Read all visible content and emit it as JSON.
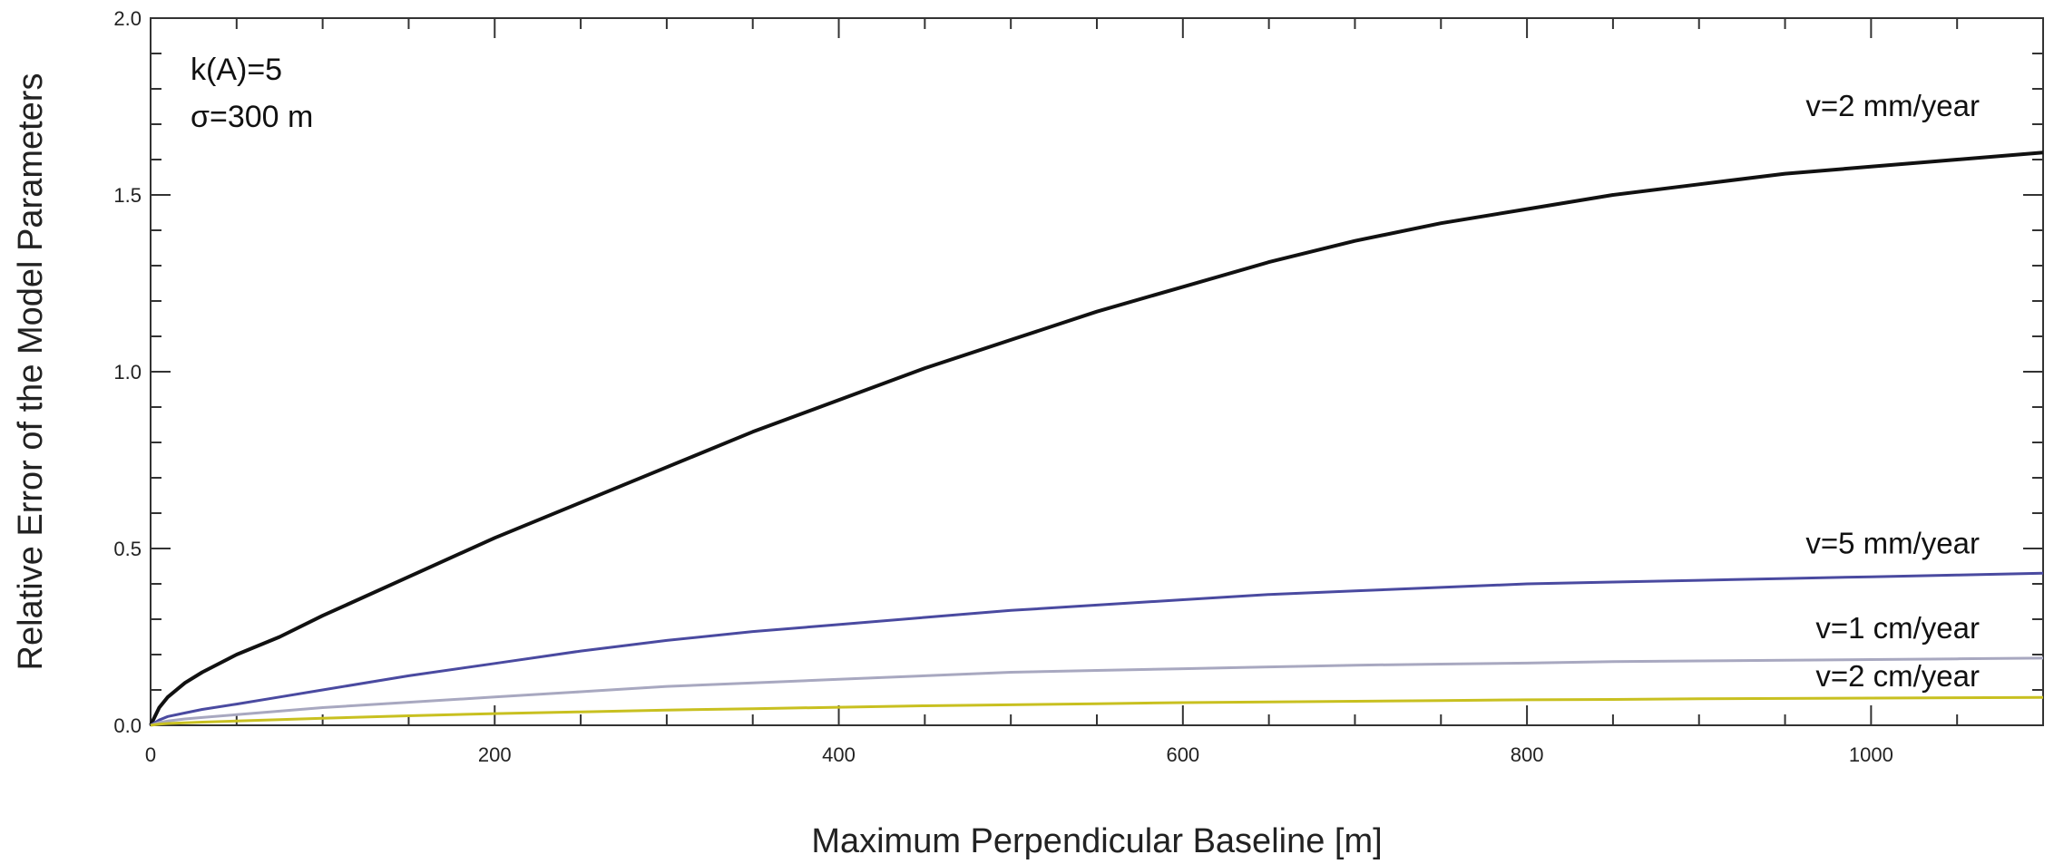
{
  "chart_data": {
    "type": "line",
    "title": "",
    "xlabel": "Maximum Perpendicular Baseline [m]",
    "ylabel": "Relative Error of the Model Parameters",
    "xlim": [
      0,
      1100
    ],
    "ylim": [
      0.0,
      2.0
    ],
    "x_ticks": [
      0,
      200,
      400,
      600,
      800,
      1000
    ],
    "x_tick_labels": [
      "0",
      "200",
      "400",
      "600",
      "800",
      "1000"
    ],
    "y_ticks": [
      0.0,
      0.5,
      1.0,
      1.5,
      2.0
    ],
    "y_tick_labels": [
      "0.0",
      "0.5",
      "1.0",
      "1.5",
      "2.0"
    ],
    "grid": false,
    "annotations": [
      "k(A)=5",
      "σ=300  m"
    ],
    "x": [
      0,
      5,
      10,
      20,
      30,
      50,
      75,
      100,
      150,
      200,
      250,
      300,
      350,
      400,
      450,
      500,
      550,
      600,
      650,
      700,
      750,
      800,
      850,
      900,
      950,
      1000,
      1050,
      1100
    ],
    "series": [
      {
        "name": "v=2 mm/year",
        "color": "#111111",
        "values": [
          0.0,
          0.05,
          0.08,
          0.12,
          0.15,
          0.2,
          0.25,
          0.31,
          0.42,
          0.53,
          0.63,
          0.73,
          0.83,
          0.92,
          1.01,
          1.09,
          1.17,
          1.24,
          1.31,
          1.37,
          1.42,
          1.46,
          1.5,
          1.53,
          1.56,
          1.58,
          1.6,
          1.62
        ]
      },
      {
        "name": "v=5 mm/year",
        "color": "#4a4aa0",
        "values": [
          0.0,
          0.015,
          0.025,
          0.035,
          0.045,
          0.06,
          0.08,
          0.1,
          0.14,
          0.175,
          0.21,
          0.24,
          0.265,
          0.285,
          0.305,
          0.325,
          0.34,
          0.355,
          0.37,
          0.38,
          0.39,
          0.4,
          0.405,
          0.41,
          0.415,
          0.42,
          0.425,
          0.43
        ]
      },
      {
        "name": "v=1 cm/year",
        "color": "#a8a8c0",
        "values": [
          0.0,
          0.008,
          0.012,
          0.018,
          0.022,
          0.03,
          0.04,
          0.05,
          0.065,
          0.08,
          0.095,
          0.11,
          0.12,
          0.13,
          0.14,
          0.15,
          0.155,
          0.16,
          0.165,
          0.17,
          0.173,
          0.176,
          0.18,
          0.182,
          0.184,
          0.186,
          0.188,
          0.19
        ]
      },
      {
        "name": "v=2 cm/year",
        "color": "#c8c020",
        "values": [
          0.0,
          0.003,
          0.005,
          0.007,
          0.009,
          0.012,
          0.016,
          0.02,
          0.027,
          0.033,
          0.038,
          0.043,
          0.047,
          0.051,
          0.055,
          0.058,
          0.061,
          0.064,
          0.066,
          0.068,
          0.07,
          0.072,
          0.073,
          0.075,
          0.076,
          0.077,
          0.078,
          0.079
        ]
      }
    ]
  }
}
